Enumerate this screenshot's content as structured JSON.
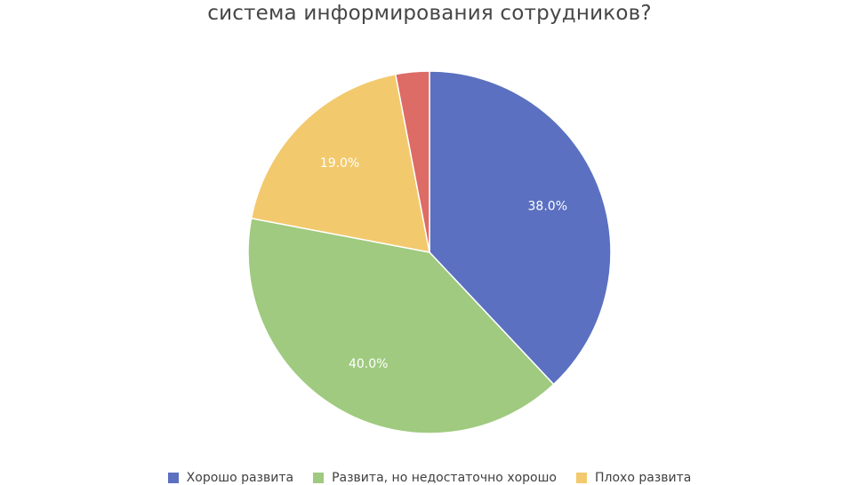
{
  "chart_data": {
    "type": "pie",
    "title": "система информирования сотрудников?",
    "slices": [
      {
        "label": "Хорошо развита",
        "value": 38.0,
        "display": "38.0%",
        "color": "#5b70c0"
      },
      {
        "label": "Развита, но недостаточно хорошо",
        "value": 40.0,
        "display": "40.0%",
        "color": "#9fca7f"
      },
      {
        "label": "Плохо развита",
        "value": 19.0,
        "display": "19.0%",
        "color": "#f2c96d"
      },
      {
        "label": "",
        "value": 3.0,
        "display": "",
        "color": "#dd6b66"
      }
    ],
    "legend_position": "bottom",
    "start_angle": "top, clockwise"
  }
}
